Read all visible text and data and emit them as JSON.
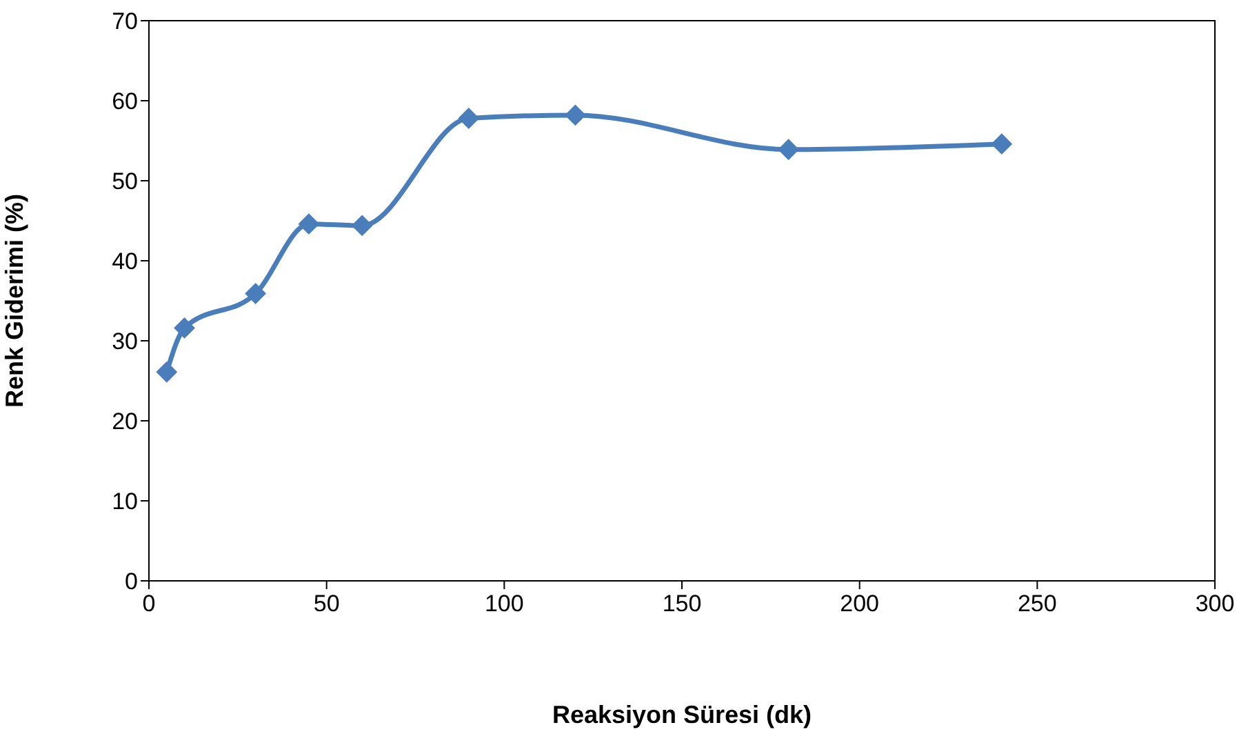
{
  "chart_data": {
    "type": "line",
    "xlabel": "Reaksiyon Süresi (dk)",
    "ylabel": "Renk Giderimi (%)",
    "x": [
      5,
      10,
      30,
      45,
      60,
      90,
      120,
      180,
      240
    ],
    "series": [
      {
        "color": "#4a7ebb",
        "values": [
          26.1,
          31.6,
          35.9,
          44.6,
          44.4,
          57.8,
          58.2,
          53.9,
          54.6
        ]
      }
    ],
    "xlim": [
      0,
      300
    ],
    "xticks": [
      0,
      50,
      100,
      150,
      200,
      250,
      300
    ],
    "ylim": [
      0,
      70
    ],
    "yticks": [
      0,
      10,
      20,
      30,
      40,
      50,
      60,
      70
    ],
    "grid": false,
    "legend": false,
    "marker": "diamond",
    "line_style": "solid"
  }
}
